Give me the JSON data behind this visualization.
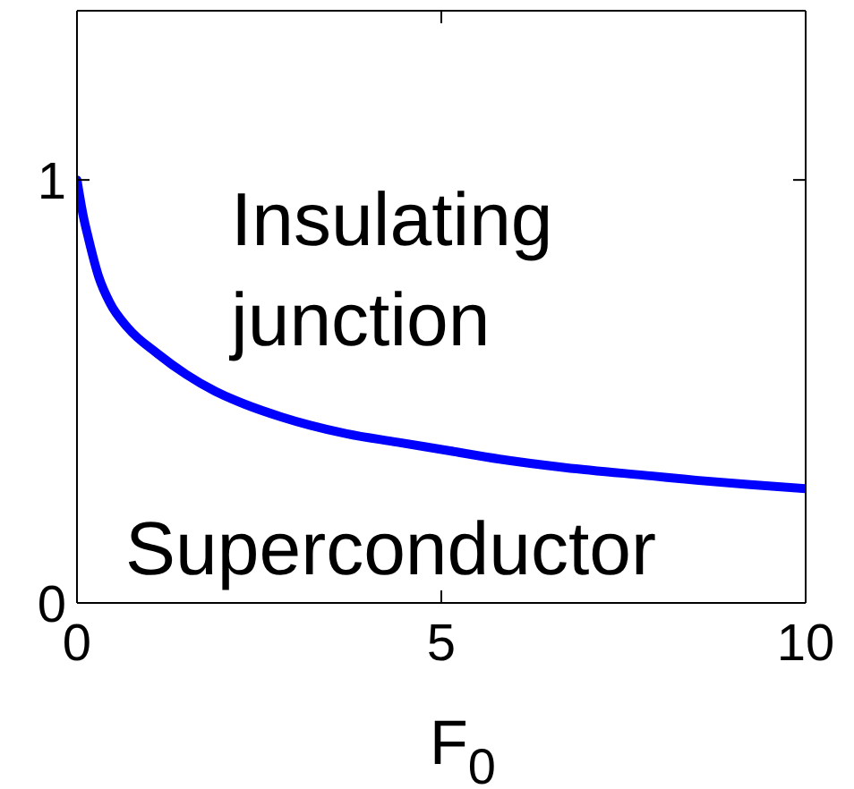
{
  "chart_data": {
    "type": "line",
    "xlabel": "F$_{0}$",
    "annotations": [
      "Insulating junction",
      "Superconductor"
    ],
    "x": [
      0,
      0.08,
      0.16,
      0.3,
      0.45,
      0.7,
      1.1,
      1.5,
      1.9,
      2.3,
      2.8,
      3.2,
      3.7,
      4.4,
      5.1,
      5.8,
      6.7,
      7.9,
      8.5,
      9.2,
      10
    ],
    "series": [
      {
        "color": "#0000ff",
        "values": [
          1,
          0.92,
          0.86,
          0.77,
          0.71,
          0.65,
          0.59,
          0.54,
          0.5,
          0.47,
          0.44,
          0.42,
          0.4,
          0.38,
          0.36,
          0.34,
          0.32,
          0.3,
          0.29,
          0.28,
          0.27
        ]
      }
    ],
    "xlim": [
      0,
      10
    ],
    "ylim": [
      0,
      1.4
    ],
    "xticks": [
      0,
      5,
      10
    ],
    "yticks": [
      0,
      1
    ],
    "line_style": "solid"
  }
}
